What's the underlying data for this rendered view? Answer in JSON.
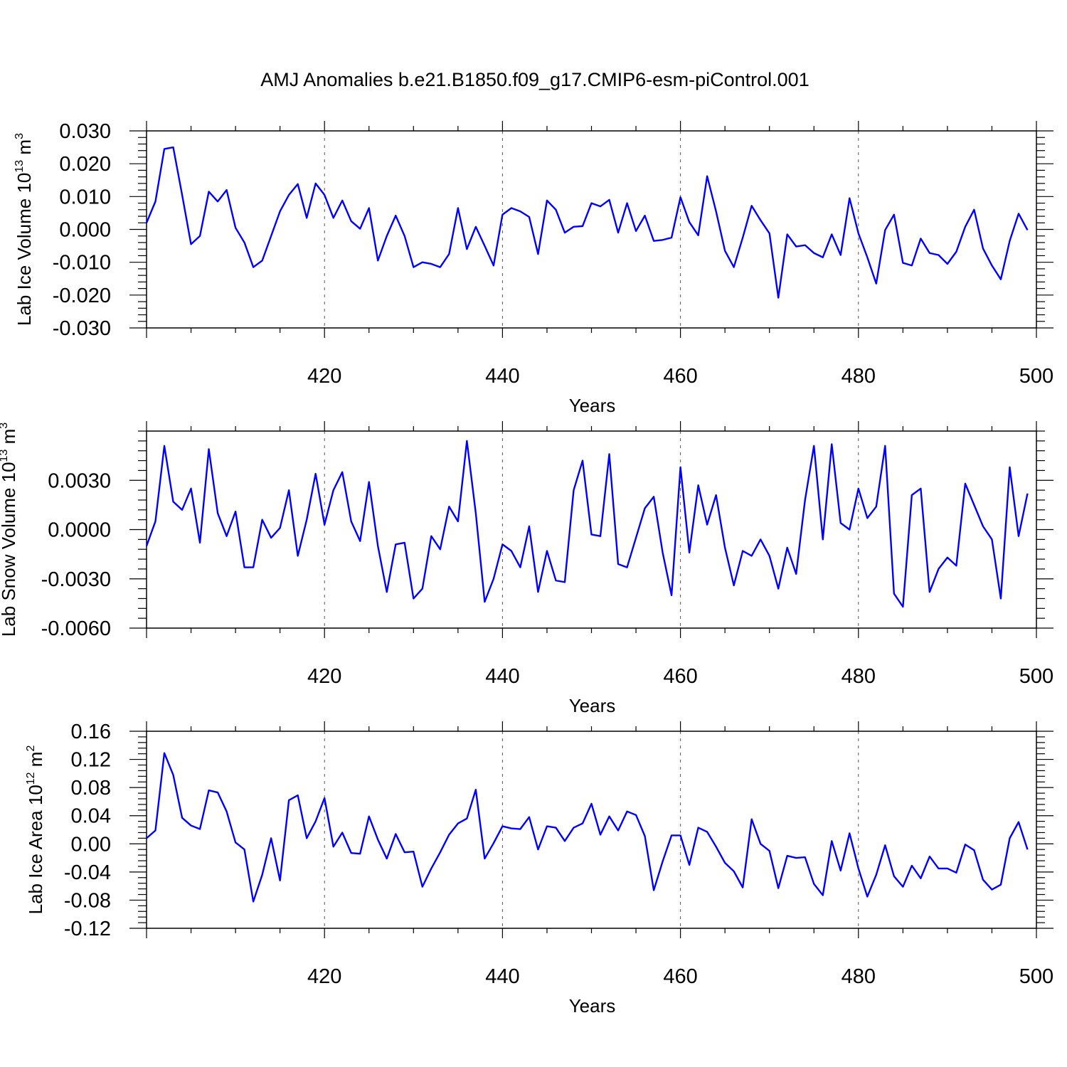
{
  "title": "AMJ Anomalies b.e21.B1850.f09_g17.CMIP6-esm-piControl.001",
  "colors": {
    "line": "#0000ff",
    "axis": "#000000",
    "grid": "#555555"
  },
  "chart_data": [
    {
      "type": "line",
      "xlabel": "Years",
      "ylabel": {
        "prefix": "Lab Ice Volume 10",
        "exponent": "13",
        "unit": " m",
        "unit_exponent": "3"
      },
      "xlim": [
        400,
        500
      ],
      "ylim": [
        -0.03,
        0.03
      ],
      "xticks": [
        "420",
        "440",
        "460",
        "480",
        "500"
      ],
      "xtick_values": [
        420,
        440,
        460,
        480,
        500
      ],
      "yticks": [
        "0.030",
        "0.020",
        "0.010",
        "0.000",
        "-0.010",
        "-0.020",
        "-0.030"
      ],
      "ytick_values": [
        0.03,
        0.02,
        0.01,
        0.0,
        -0.01,
        -0.02,
        -0.03
      ],
      "grid": "vertical dashed at 420, 440, 460, 480",
      "x_start": 400,
      "series": [
        {
          "values": [
            0.002,
            0.0085,
            0.0245,
            0.025,
            0.0105,
            -0.0045,
            -0.002,
            0.0115,
            0.0085,
            0.012,
            0.0005,
            -0.004,
            -0.0115,
            -0.0095,
            -0.002,
            0.0055,
            0.0105,
            0.0138,
            0.0035,
            0.014,
            0.0105,
            0.0035,
            0.0088,
            0.0025,
            0.0002,
            0.0065,
            -0.0095,
            -0.002,
            0.0042,
            -0.002,
            -0.0115,
            -0.01,
            -0.0105,
            -0.0115,
            -0.0075,
            0.0065,
            -0.006,
            0.0008,
            -0.005,
            -0.011,
            0.0045,
            0.0065,
            0.0055,
            0.0038,
            -0.0075,
            0.0088,
            0.006,
            -0.001,
            0.0008,
            0.001,
            0.008,
            0.007,
            0.009,
            -0.001,
            0.008,
            -0.0005,
            0.0042,
            -0.0035,
            -0.0032,
            -0.0025,
            0.0098,
            0.0022,
            -0.0018,
            0.0162,
            0.0055,
            -0.0065,
            -0.0115,
            -0.0025,
            0.0072,
            0.0028,
            -0.0012,
            -0.0208,
            -0.0015,
            -0.0052,
            -0.0048,
            -0.0072,
            -0.0085,
            -0.0015,
            -0.0078,
            0.0095,
            -0.0012,
            -0.0085,
            -0.0165,
            -0.0002,
            0.0045,
            -0.0102,
            -0.011,
            -0.0028,
            -0.0072,
            -0.0078,
            -0.0105,
            -0.0068,
            0.0008,
            0.006,
            -0.0058,
            -0.011,
            -0.0152,
            -0.0035,
            0.0048,
            -0.0002
          ]
        }
      ]
    },
    {
      "type": "line",
      "xlabel": "Years",
      "ylabel": {
        "prefix": "Lab Snow Volume 10",
        "exponent": "13",
        "unit": " m",
        "unit_exponent": "3"
      },
      "xlim": [
        400,
        500
      ],
      "ylim": [
        -0.006,
        0.006
      ],
      "xticks": [
        "420",
        "440",
        "460",
        "480",
        "500"
      ],
      "xtick_values": [
        420,
        440,
        460,
        480,
        500
      ],
      "yticks": [
        "0.0030",
        "0.0000",
        "-0.0030",
        "-0.0060"
      ],
      "ytick_values": [
        0.003,
        0.0,
        -0.003,
        -0.006
      ],
      "grid": "vertical dashed at 420, 440, 460, 480",
      "x_start": 400,
      "series": [
        {
          "values": [
            -0.001,
            0.0005,
            0.0051,
            0.0017,
            0.0012,
            0.0025,
            -0.0008,
            0.0049,
            0.001,
            -0.0004,
            0.0011,
            -0.0023,
            -0.0023,
            0.0006,
            -0.0005,
            0.0001,
            0.0024,
            -0.0016,
            0.0006,
            0.0034,
            0.0003,
            0.0024,
            0.0035,
            0.0005,
            -0.0007,
            0.0029,
            -0.001,
            -0.0038,
            -0.0009,
            -0.0008,
            -0.0042,
            -0.0036,
            -0.0004,
            -0.0012,
            0.0014,
            0.0005,
            0.0054,
            0.001,
            -0.0044,
            -0.003,
            -0.0009,
            -0.0013,
            -0.0023,
            0.0002,
            -0.0038,
            -0.0013,
            -0.0031,
            -0.0032,
            0.0024,
            0.0042,
            -0.0003,
            -0.0004,
            0.0046,
            -0.0021,
            -0.0023,
            -0.0005,
            0.0013,
            0.002,
            -0.0014,
            -0.004,
            0.0038,
            -0.0014,
            0.0027,
            0.0003,
            0.0021,
            -0.0011,
            -0.0034,
            -0.0013,
            -0.0016,
            -0.0006,
            -0.0016,
            -0.0036,
            -0.0011,
            -0.0027,
            0.0018,
            0.0051,
            -0.0006,
            0.0052,
            0.0004,
            0.0,
            0.0025,
            0.0007,
            0.0014,
            0.0051,
            -0.0039,
            -0.0047,
            0.0021,
            0.0025,
            -0.0038,
            -0.0024,
            -0.0017,
            -0.0022,
            0.0028,
            0.0015,
            0.0002,
            -0.0006,
            -0.0042,
            0.0038,
            -0.0004,
            0.0022
          ]
        }
      ]
    },
    {
      "type": "line",
      "xlabel": "Years",
      "ylabel": {
        "prefix": "Lab Ice Area 10",
        "exponent": "12",
        "unit": " m",
        "unit_exponent": "2"
      },
      "xlim": [
        400,
        500
      ],
      "ylim": [
        -0.12,
        0.16
      ],
      "xticks": [
        "420",
        "440",
        "460",
        "480",
        "500"
      ],
      "xtick_values": [
        420,
        440,
        460,
        480,
        500
      ],
      "yticks": [
        "0.16",
        "0.12",
        "0.08",
        "0.04",
        "0.00",
        "-0.04",
        "-0.08",
        "-0.12"
      ],
      "ytick_values": [
        0.16,
        0.12,
        0.08,
        0.04,
        0.0,
        -0.04,
        -0.08,
        -0.12
      ],
      "grid": "vertical dashed at 420, 440, 460, 480",
      "x_start": 400,
      "series": [
        {
          "values": [
            0.008,
            0.019,
            0.129,
            0.098,
            0.037,
            0.026,
            0.021,
            0.076,
            0.073,
            0.046,
            0.002,
            -0.008,
            -0.082,
            -0.044,
            0.008,
            -0.052,
            0.062,
            0.069,
            0.008,
            0.032,
            0.065,
            -0.004,
            0.016,
            -0.013,
            -0.014,
            0.039,
            0.006,
            -0.021,
            0.014,
            -0.012,
            -0.011,
            -0.061,
            -0.035,
            -0.012,
            0.013,
            0.029,
            0.036,
            0.077,
            -0.021,
            0.001,
            0.025,
            0.022,
            0.021,
            0.038,
            -0.008,
            0.025,
            0.023,
            0.004,
            0.023,
            0.029,
            0.057,
            0.013,
            0.039,
            0.019,
            0.046,
            0.041,
            0.011,
            -0.066,
            -0.025,
            0.012,
            0.012,
            -0.03,
            0.023,
            0.017,
            -0.004,
            -0.027,
            -0.039,
            -0.062,
            0.035,
            0.0,
            -0.01,
            -0.063,
            -0.017,
            -0.02,
            -0.019,
            -0.057,
            -0.073,
            0.004,
            -0.038,
            0.015,
            -0.035,
            -0.075,
            -0.044,
            -0.002,
            -0.046,
            -0.061,
            -0.031,
            -0.049,
            -0.018,
            -0.035,
            -0.035,
            -0.041,
            -0.001,
            -0.009,
            -0.051,
            -0.065,
            -0.058,
            0.008,
            0.031,
            -0.008
          ]
        }
      ]
    }
  ]
}
